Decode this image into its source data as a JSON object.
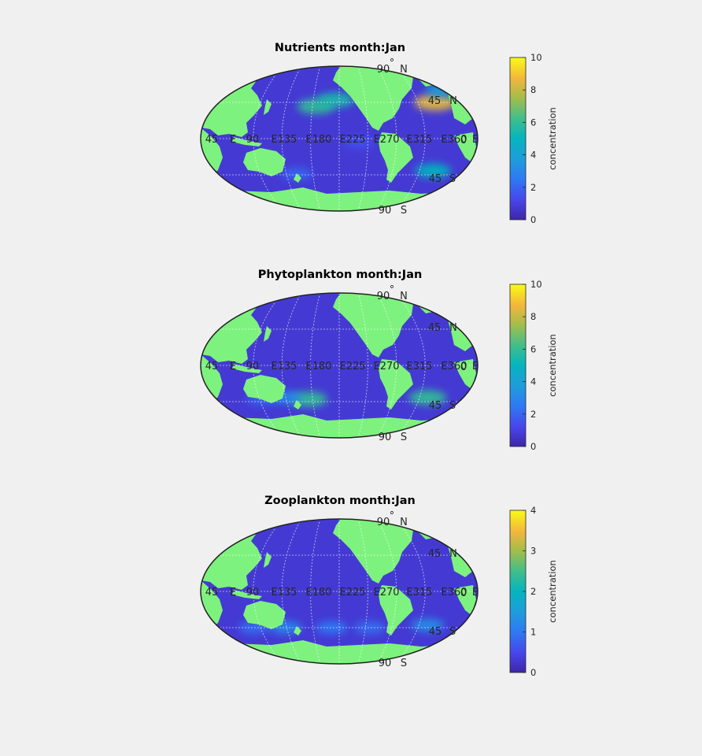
{
  "chart_data": [
    {
      "type": "heatmap",
      "title": "Nutrients month:Jan",
      "projection": "robinson",
      "map_center_longitude": 180,
      "colormap": "parula",
      "land_color": "#7ef27e",
      "colorbar": {
        "label": "concentration",
        "range": [
          0,
          10
        ],
        "ticks": [
          "0",
          "2",
          "4",
          "6",
          "8",
          "10"
        ]
      },
      "longitude_labels": [
        "45",
        "E",
        "90",
        "E135",
        "E180",
        "E225",
        "E270",
        "E315",
        "E360",
        "E"
      ],
      "latitude_labels": [
        "90",
        "°",
        "N",
        "45",
        "N",
        "0",
        "45",
        "S",
        "90",
        "S"
      ],
      "features": [
        {
          "lon": 305,
          "lat": 45,
          "value": 8.5
        },
        {
          "lon": 150,
          "lat": 40,
          "value": 6
        },
        {
          "lon": 175,
          "lat": 48,
          "value": 5.5
        },
        {
          "lon": 315,
          "lat": 60,
          "value": 4
        },
        {
          "lon": 302,
          "lat": -40,
          "value": 5
        },
        {
          "lon": 125,
          "lat": -44,
          "value": 2
        },
        {
          "lon": 205,
          "lat": -5,
          "value": 1.5
        }
      ]
    },
    {
      "type": "heatmap",
      "title": "Phytoplankton month:Jan",
      "projection": "robinson",
      "map_center_longitude": 180,
      "colormap": "parula",
      "land_color": "#7ef27e",
      "colorbar": {
        "label": "concentration",
        "range": [
          0,
          10
        ],
        "ticks": [
          "0",
          "2",
          "4",
          "6",
          "8",
          "10"
        ]
      },
      "longitude_labels": [
        "45",
        "E",
        "90",
        "E135",
        "E180",
        "E225",
        "E270",
        "E315",
        "E360",
        "E"
      ],
      "latitude_labels": [
        "90",
        "°",
        "N",
        "45",
        "N",
        "0",
        "45",
        "S",
        "90",
        "S"
      ],
      "features": [
        {
          "lon": 140,
          "lat": -42,
          "value": 6
        },
        {
          "lon": 295,
          "lat": -40,
          "value": 6
        },
        {
          "lon": 110,
          "lat": -40,
          "value": 3
        },
        {
          "lon": 80,
          "lat": -42,
          "value": 2
        }
      ]
    },
    {
      "type": "heatmap",
      "title": "Zooplankton month:Jan",
      "projection": "robinson",
      "map_center_longitude": 180,
      "colormap": "parula",
      "land_color": "#7ef27e",
      "colorbar": {
        "label": "concentration",
        "range": [
          0,
          4
        ],
        "ticks": [
          "0",
          "1",
          "2",
          "3",
          "4"
        ]
      },
      "longitude_labels": [
        "45",
        "E",
        "90",
        "E135",
        "E180",
        "E225",
        "E270",
        "E315",
        "E360",
        "E"
      ],
      "latitude_labels": [
        "90",
        "°",
        "N",
        "45",
        "N",
        "0",
        "45",
        "S",
        "90",
        "S"
      ],
      "features": [
        {
          "lon": 110,
          "lat": -45,
          "value": 1.2
        },
        {
          "lon": 170,
          "lat": -45,
          "value": 1.0
        },
        {
          "lon": 220,
          "lat": -45,
          "value": 0.9
        },
        {
          "lon": 295,
          "lat": -42,
          "value": 1.3
        },
        {
          "lon": 70,
          "lat": -45,
          "value": 0.9
        }
      ]
    }
  ]
}
